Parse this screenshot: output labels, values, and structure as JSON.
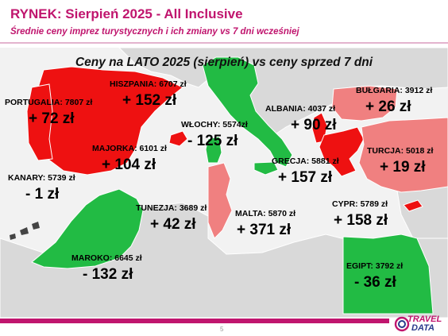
{
  "header": {
    "title": "RYNEK: Sierpień 2025 - All Inclusive",
    "subtitle": "Średnie ceny imprez turystycznych i ich zmiany vs 7 dni wcześniej"
  },
  "map_title": "Ceny na LATO 2025 (sierpień) vs ceny sprzed 7 dni",
  "colors": {
    "increase_strong": "#ee1111",
    "increase_mild": "#f08080",
    "decrease": "#22bb44",
    "land": "#d9d9d9",
    "sea": "#f2f2f2",
    "brand": "#c0156e"
  },
  "destinations": [
    {
      "id": "portugalia",
      "name": "PORTUGALIA: 7807 zł",
      "change": "+ 72 zł"
    },
    {
      "id": "hiszpania",
      "name": "HISZPANIA: 6707 zł",
      "change": "+ 152 zł"
    },
    {
      "id": "majorka",
      "name": "MAJORKA: 6101 zł",
      "change": "+ 104 zł"
    },
    {
      "id": "wlochy",
      "name": "WŁOCHY: 5574zł",
      "change": "- 125 zł"
    },
    {
      "id": "albania",
      "name": "ALBANIA: 4037 zł",
      "change": "+ 90 zł"
    },
    {
      "id": "bulgaria",
      "name": "BUŁGARIA: 3912 zł",
      "change": "+ 26 zł"
    },
    {
      "id": "turcja",
      "name": "TURCJA: 5018 zł",
      "change": "+ 19 zł"
    },
    {
      "id": "grecja",
      "name": "GRECJA: 5881 zł",
      "change": "+ 157 zł"
    },
    {
      "id": "kanary",
      "name": "KANARY: 5739 zł",
      "change": "- 1 zł"
    },
    {
      "id": "tunezja",
      "name": "TUNEZJA: 3689 zł",
      "change": "+ 42 zł"
    },
    {
      "id": "malta",
      "name": "MALTA: 5870 zł",
      "change": "+ 371 zł"
    },
    {
      "id": "cypr",
      "name": "CYPR: 5789 zł",
      "change": "+ 158 zł"
    },
    {
      "id": "maroko",
      "name": "MAROKO: 6645 zł",
      "change": "- 132 zł"
    },
    {
      "id": "egipt",
      "name": "EGIPT: 3792 zł",
      "change": "- 36 zł"
    }
  ],
  "footer": {
    "page_number": "5",
    "logo_line1": "TRAVEL",
    "logo_line2": "DATA"
  }
}
